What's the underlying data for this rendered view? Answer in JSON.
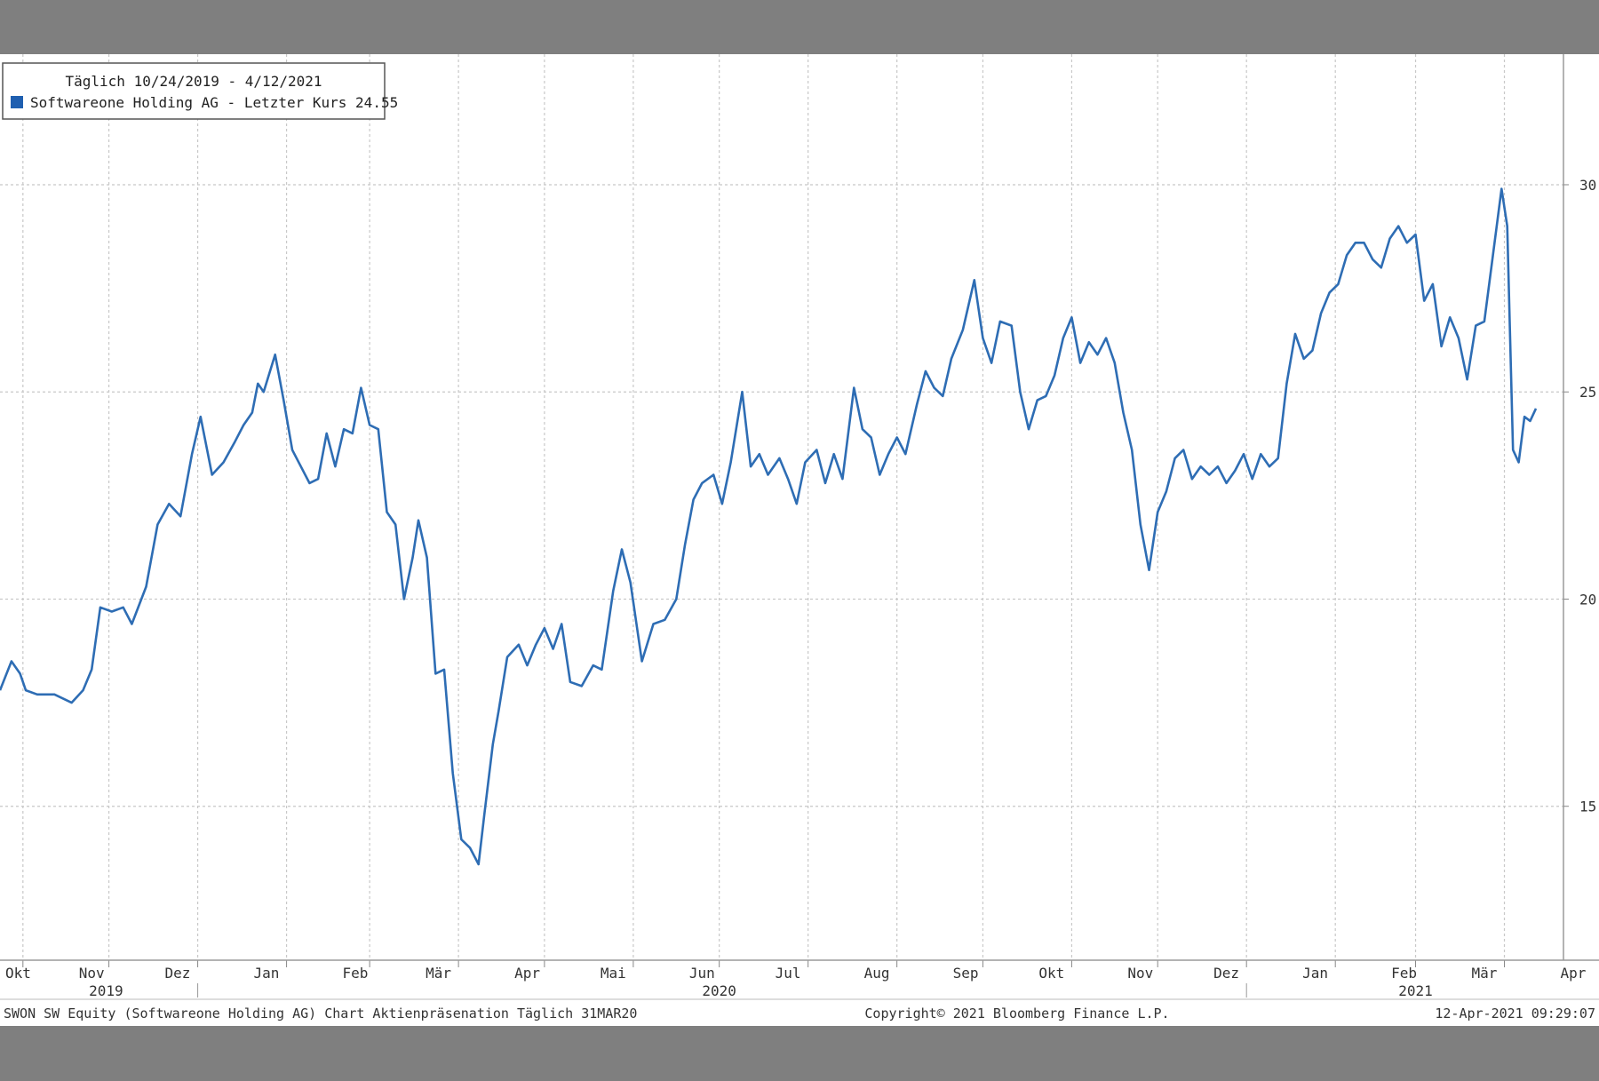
{
  "legend": {
    "period_label": "Täglich 10/24/2019 - 4/12/2021",
    "series_label": "Softwareone Holding AG - Letzter Kurs 24.55"
  },
  "footer": {
    "left": "SWON SW Equity (Softwareone Holding AG) Chart Aktienpräsenation  Täglich 31MAR20",
    "center": "Copyright© 2021 Bloomberg Finance L.P.",
    "right": "12-Apr-2021 09:29:07"
  },
  "colors": {
    "line": "#2e6db4",
    "legend_swatch": "#1f5fb0",
    "grid": "#c8c8c8"
  },
  "chart_data": {
    "type": "line",
    "title": "",
    "xlabel": "",
    "ylabel": "",
    "ylim": [
      11.5,
      31.5
    ],
    "yticks": [
      15,
      20,
      25,
      30
    ],
    "x_range": [
      "2019-10-24",
      "2021-04-12"
    ],
    "month_ticks": [
      {
        "label": "Okt",
        "date": "2019-10-25"
      },
      {
        "label": "Nov",
        "date": "2019-11-25"
      },
      {
        "label": "Dez",
        "date": "2019-12-25"
      },
      {
        "label": "Jan",
        "date": "2020-01-25"
      },
      {
        "label": "Feb",
        "date": "2020-02-25"
      },
      {
        "label": "Mär",
        "date": "2020-03-25"
      },
      {
        "label": "Apr",
        "date": "2020-04-25"
      },
      {
        "label": "Mai",
        "date": "2020-05-25"
      },
      {
        "label": "Jun",
        "date": "2020-06-25"
      },
      {
        "label": "Jul",
        "date": "2020-07-25"
      },
      {
        "label": "Aug",
        "date": "2020-08-25"
      },
      {
        "label": "Sep",
        "date": "2020-09-25"
      },
      {
        "label": "Okt",
        "date": "2020-10-25"
      },
      {
        "label": "Nov",
        "date": "2020-11-25"
      },
      {
        "label": "Dez",
        "date": "2020-12-25"
      },
      {
        "label": "Jan",
        "date": "2021-01-25"
      },
      {
        "label": "Feb",
        "date": "2021-02-25"
      },
      {
        "label": "Mär",
        "date": "2021-03-25"
      },
      {
        "label": "Apr",
        "date": "2021-04-25"
      }
    ],
    "year_labels": [
      {
        "label": "2019",
        "date": "2019-11-30"
      },
      {
        "label": "2020",
        "date": "2020-07-01"
      },
      {
        "label": "2021",
        "date": "2021-03-01"
      }
    ],
    "grid": true,
    "legend_position": "top-left",
    "series": [
      {
        "name": "Softwareone Holding AG - Letzter Kurs 24.55",
        "points": [
          [
            "2019-10-24",
            17.8
          ],
          [
            "2019-10-28",
            18.5
          ],
          [
            "2019-10-31",
            18.2
          ],
          [
            "2019-11-02",
            17.8
          ],
          [
            "2019-11-06",
            17.7
          ],
          [
            "2019-11-12",
            17.7
          ],
          [
            "2019-11-18",
            17.5
          ],
          [
            "2019-11-22",
            17.8
          ],
          [
            "2019-11-25",
            18.3
          ],
          [
            "2019-11-28",
            19.8
          ],
          [
            "2019-12-02",
            19.7
          ],
          [
            "2019-12-06",
            19.8
          ],
          [
            "2019-12-09",
            19.4
          ],
          [
            "2019-12-14",
            20.3
          ],
          [
            "2019-12-18",
            21.8
          ],
          [
            "2019-12-22",
            22.3
          ],
          [
            "2019-12-26",
            22.0
          ],
          [
            "2019-12-30",
            23.5
          ],
          [
            "2020-01-02",
            24.4
          ],
          [
            "2020-01-06",
            23.0
          ],
          [
            "2020-01-10",
            23.3
          ],
          [
            "2020-01-14",
            23.8
          ],
          [
            "2020-01-17",
            24.2
          ],
          [
            "2020-01-20",
            24.5
          ],
          [
            "2020-01-22",
            25.2
          ],
          [
            "2020-01-24",
            25.0
          ],
          [
            "2020-01-28",
            25.9
          ],
          [
            "2020-01-31",
            24.8
          ],
          [
            "2020-02-03",
            23.6
          ],
          [
            "2020-02-06",
            23.2
          ],
          [
            "2020-02-09",
            22.8
          ],
          [
            "2020-02-12",
            22.9
          ],
          [
            "2020-02-15",
            24.0
          ],
          [
            "2020-02-18",
            23.2
          ],
          [
            "2020-02-21",
            24.1
          ],
          [
            "2020-02-24",
            24.0
          ],
          [
            "2020-02-27",
            25.1
          ],
          [
            "2020-03-01",
            24.2
          ],
          [
            "2020-03-04",
            24.1
          ],
          [
            "2020-03-07",
            22.1
          ],
          [
            "2020-03-10",
            21.8
          ],
          [
            "2020-03-13",
            20.0
          ],
          [
            "2020-03-16",
            21.0
          ],
          [
            "2020-03-18",
            21.9
          ],
          [
            "2020-03-21",
            21.0
          ],
          [
            "2020-03-24",
            18.2
          ],
          [
            "2020-03-27",
            18.3
          ],
          [
            "2020-03-30",
            15.8
          ],
          [
            "2020-04-02",
            14.2
          ],
          [
            "2020-04-05",
            14.0
          ],
          [
            "2020-04-08",
            13.6
          ],
          [
            "2020-04-10",
            14.8
          ],
          [
            "2020-04-13",
            16.5
          ],
          [
            "2020-04-15",
            17.3
          ],
          [
            "2020-04-18",
            18.6
          ],
          [
            "2020-04-22",
            18.9
          ],
          [
            "2020-04-25",
            18.4
          ],
          [
            "2020-04-28",
            18.9
          ],
          [
            "2020-05-01",
            19.3
          ],
          [
            "2020-05-04",
            18.8
          ],
          [
            "2020-05-07",
            19.4
          ],
          [
            "2020-05-10",
            18.0
          ],
          [
            "2020-05-14",
            17.9
          ],
          [
            "2020-05-18",
            18.4
          ],
          [
            "2020-05-21",
            18.3
          ],
          [
            "2020-05-25",
            20.2
          ],
          [
            "2020-05-28",
            21.2
          ],
          [
            "2020-05-31",
            20.4
          ],
          [
            "2020-06-04",
            18.5
          ],
          [
            "2020-06-08",
            19.4
          ],
          [
            "2020-06-12",
            19.5
          ],
          [
            "2020-06-16",
            20.0
          ],
          [
            "2020-06-19",
            21.3
          ],
          [
            "2020-06-22",
            22.4
          ],
          [
            "2020-06-25",
            22.8
          ],
          [
            "2020-06-29",
            23.0
          ],
          [
            "2020-07-02",
            22.3
          ],
          [
            "2020-07-05",
            23.3
          ],
          [
            "2020-07-09",
            25.0
          ],
          [
            "2020-07-12",
            23.2
          ],
          [
            "2020-07-15",
            23.5
          ],
          [
            "2020-07-18",
            23.0
          ],
          [
            "2020-07-22",
            23.4
          ],
          [
            "2020-07-25",
            22.9
          ],
          [
            "2020-07-28",
            22.3
          ],
          [
            "2020-07-31",
            23.3
          ],
          [
            "2020-08-04",
            23.6
          ],
          [
            "2020-08-07",
            22.8
          ],
          [
            "2020-08-10",
            23.5
          ],
          [
            "2020-08-13",
            22.9
          ],
          [
            "2020-08-17",
            25.1
          ],
          [
            "2020-08-20",
            24.1
          ],
          [
            "2020-08-23",
            23.9
          ],
          [
            "2020-08-26",
            23.0
          ],
          [
            "2020-08-29",
            23.5
          ],
          [
            "2020-09-01",
            23.9
          ],
          [
            "2020-09-04",
            23.5
          ],
          [
            "2020-09-08",
            24.7
          ],
          [
            "2020-09-11",
            25.5
          ],
          [
            "2020-09-14",
            25.1
          ],
          [
            "2020-09-17",
            24.9
          ],
          [
            "2020-09-20",
            25.8
          ],
          [
            "2020-09-24",
            26.5
          ],
          [
            "2020-09-28",
            27.7
          ],
          [
            "2020-10-01",
            26.3
          ],
          [
            "2020-10-04",
            25.7
          ],
          [
            "2020-10-07",
            26.7
          ],
          [
            "2020-10-11",
            26.6
          ],
          [
            "2020-10-14",
            25.0
          ],
          [
            "2020-10-17",
            24.1
          ],
          [
            "2020-10-20",
            24.8
          ],
          [
            "2020-10-23",
            24.9
          ],
          [
            "2020-10-26",
            25.4
          ],
          [
            "2020-10-29",
            26.3
          ],
          [
            "2020-11-01",
            26.8
          ],
          [
            "2020-11-04",
            25.7
          ],
          [
            "2020-11-07",
            26.2
          ],
          [
            "2020-11-10",
            25.9
          ],
          [
            "2020-11-13",
            26.3
          ],
          [
            "2020-11-16",
            25.7
          ],
          [
            "2020-11-19",
            24.5
          ],
          [
            "2020-11-22",
            23.6
          ],
          [
            "2020-11-25",
            21.8
          ],
          [
            "2020-11-28",
            20.7
          ],
          [
            "2020-12-01",
            22.1
          ],
          [
            "2020-12-04",
            22.6
          ],
          [
            "2020-12-07",
            23.4
          ],
          [
            "2020-12-10",
            23.6
          ],
          [
            "2020-12-13",
            22.9
          ],
          [
            "2020-12-16",
            23.2
          ],
          [
            "2020-12-19",
            23.0
          ],
          [
            "2020-12-22",
            23.2
          ],
          [
            "2020-12-25",
            22.8
          ],
          [
            "2020-12-28",
            23.1
          ],
          [
            "2020-12-31",
            23.5
          ],
          [
            "2021-01-03",
            22.9
          ],
          [
            "2021-01-06",
            23.5
          ],
          [
            "2021-01-09",
            23.2
          ],
          [
            "2021-01-12",
            23.4
          ],
          [
            "2021-01-15",
            25.2
          ],
          [
            "2021-01-18",
            26.4
          ],
          [
            "2021-01-21",
            25.8
          ],
          [
            "2021-01-24",
            26.0
          ],
          [
            "2021-01-27",
            26.9
          ],
          [
            "2021-01-30",
            27.4
          ],
          [
            "2021-02-02",
            27.6
          ],
          [
            "2021-02-05",
            28.3
          ],
          [
            "2021-02-08",
            28.6
          ],
          [
            "2021-02-11",
            28.6
          ],
          [
            "2021-02-14",
            28.2
          ],
          [
            "2021-02-17",
            28.0
          ],
          [
            "2021-02-20",
            28.7
          ],
          [
            "2021-02-23",
            29.0
          ],
          [
            "2021-02-26",
            28.6
          ],
          [
            "2021-03-01",
            28.8
          ],
          [
            "2021-03-04",
            27.2
          ],
          [
            "2021-03-07",
            27.6
          ],
          [
            "2021-03-10",
            26.1
          ],
          [
            "2021-03-13",
            26.8
          ],
          [
            "2021-03-16",
            26.3
          ],
          [
            "2021-03-19",
            25.3
          ],
          [
            "2021-03-22",
            26.6
          ],
          [
            "2021-03-25",
            26.7
          ],
          [
            "2021-03-28",
            28.3
          ],
          [
            "2021-03-31",
            29.9
          ],
          [
            "2021-04-02",
            29.0
          ],
          [
            "2021-04-04",
            23.6
          ],
          [
            "2021-04-06",
            23.3
          ],
          [
            "2021-04-08",
            24.4
          ],
          [
            "2021-04-10",
            24.3
          ],
          [
            "2021-04-12",
            24.6
          ]
        ]
      }
    ]
  }
}
